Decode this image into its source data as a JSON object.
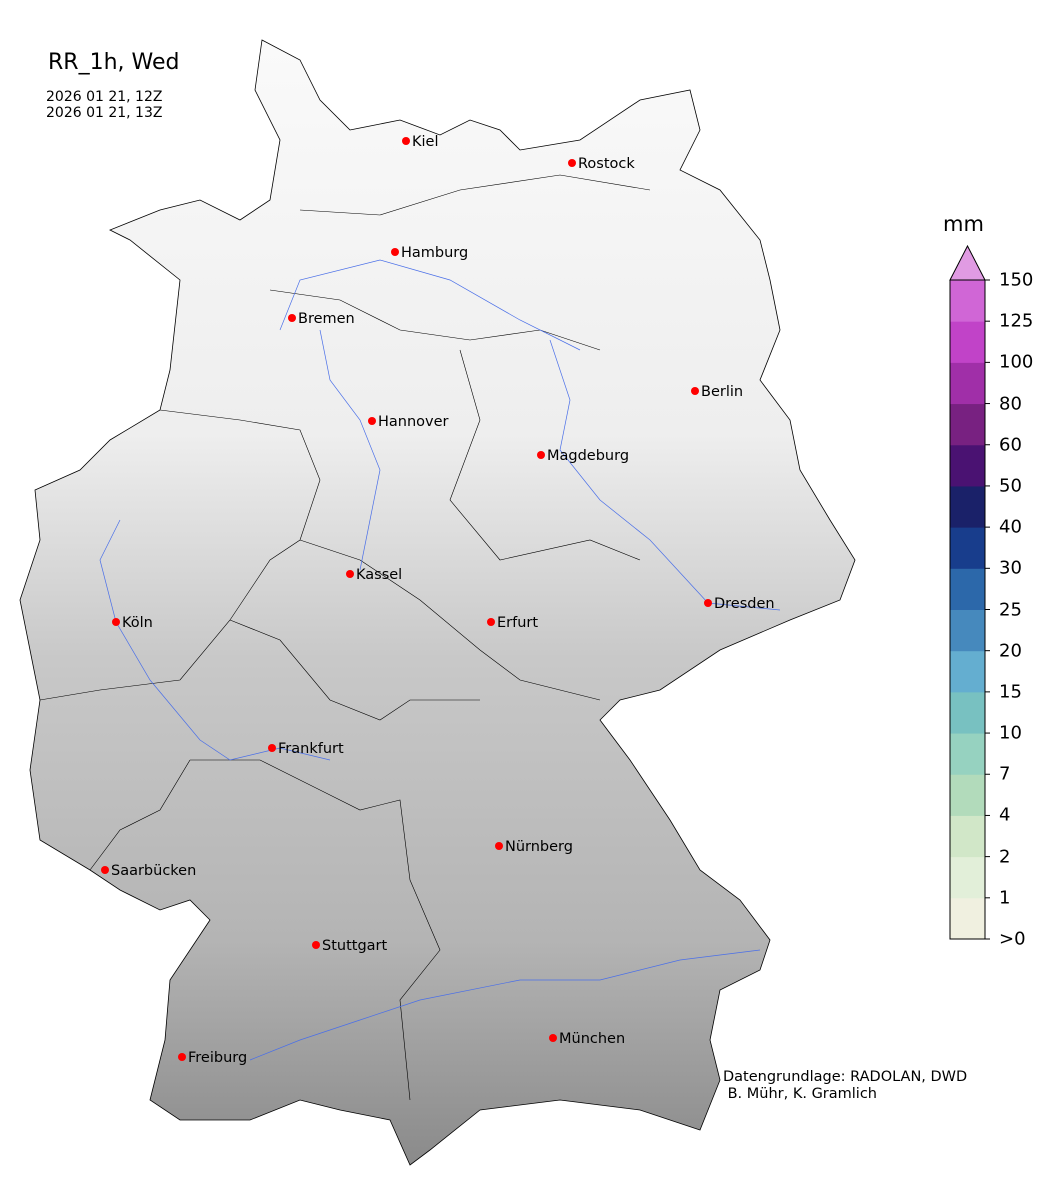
{
  "title": "RR_1h, Wed",
  "subtitle_lines": [
    "2026 01 21, 12Z",
    "2026 01 21, 13Z"
  ],
  "colorbar": {
    "unit": "mm",
    "ticks": [
      ">0",
      "1",
      "2",
      "4",
      "7",
      "10",
      "15",
      "20",
      "25",
      "30",
      "40",
      "50",
      "60",
      "80",
      "100",
      "125",
      "150"
    ],
    "colors": [
      "#f0f0e0",
      "#e2efd9",
      "#d1e7c8",
      "#b2dbbb",
      "#96d2c0",
      "#78c1c1",
      "#64aed0",
      "#4689bd",
      "#2c68aa",
      "#183d8c",
      "#1a2169",
      "#4a1272",
      "#782181",
      "#a02fa8",
      "#c143c8",
      "#d066d6"
    ],
    "extend_color": "#e09be3"
  },
  "cities": [
    {
      "name": "Kiel"
    },
    {
      "name": "Rostock"
    },
    {
      "name": "Hamburg"
    },
    {
      "name": "Bremen"
    },
    {
      "name": "Hannover"
    },
    {
      "name": "Berlin"
    },
    {
      "name": "Magdeburg"
    },
    {
      "name": "Kassel"
    },
    {
      "name": "Köln"
    },
    {
      "name": "Erfurt"
    },
    {
      "name": "Dresden"
    },
    {
      "name": "Frankfurt"
    },
    {
      "name": "Nürnberg"
    },
    {
      "name": "Saarbücken"
    },
    {
      "name": "Stuttgart"
    },
    {
      "name": "Freiburg"
    },
    {
      "name": "München"
    }
  ],
  "city_marker_color": "#ff0000",
  "credits": [
    "Datengrundlage: RADOLAN, DWD",
    " B. Mühr, K. Gramlich"
  ]
}
